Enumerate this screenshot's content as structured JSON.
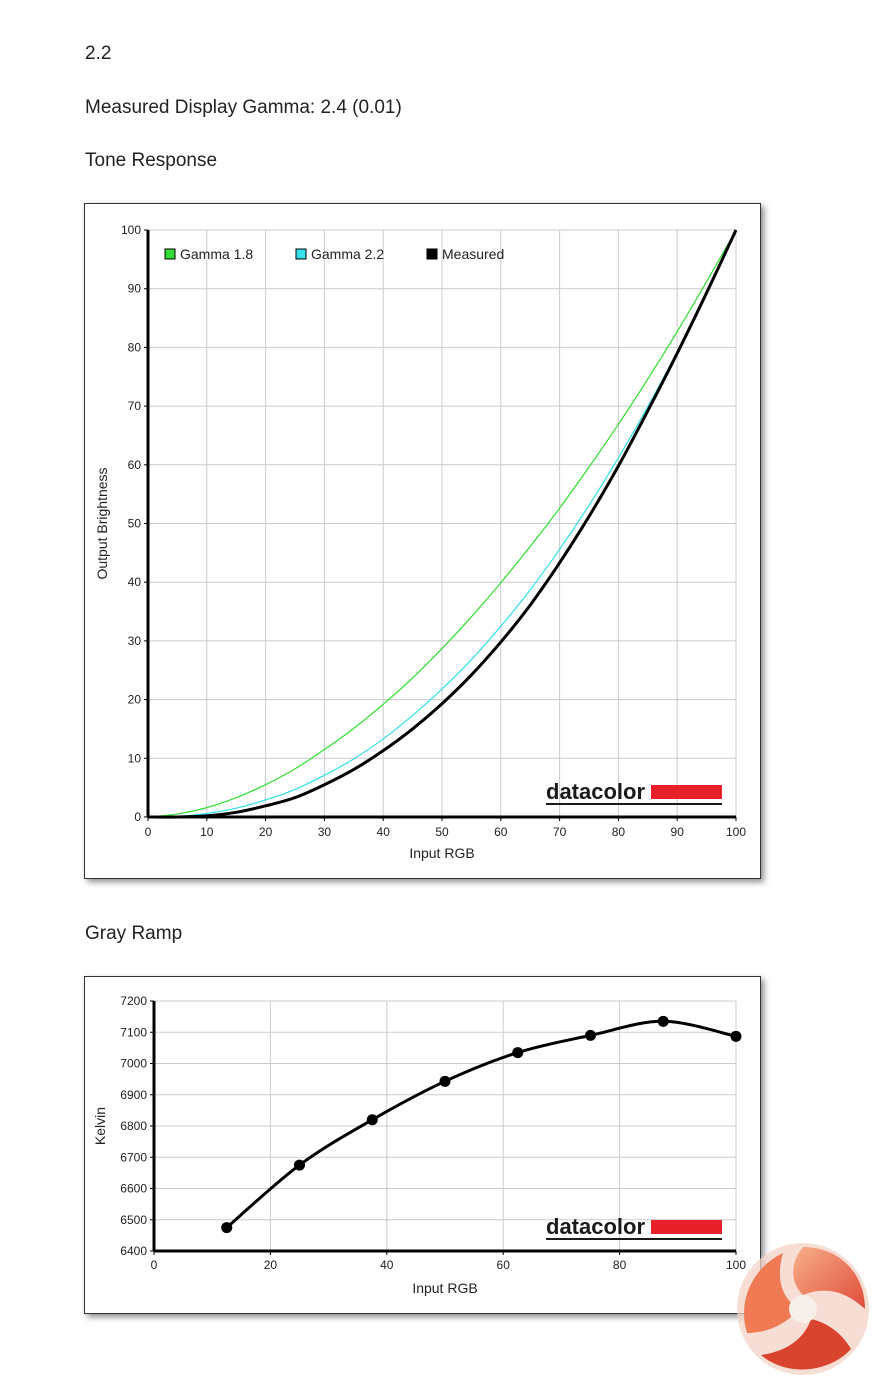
{
  "header": {
    "value_line": "2.2",
    "measured_line": "Measured Display Gamma: 2.4 (0.01)",
    "tone_title": "Tone Response",
    "gray_title": "Gray Ramp"
  },
  "brand": {
    "logo_text": "datacolor",
    "logo_bar_color": "#e8202a",
    "overlay_logo": "kitguru-logo-icon"
  },
  "chart_data": [
    {
      "type": "line",
      "xlabel": "Input RGB",
      "ylabel": "Output Brightness",
      "xlim": [
        0,
        100
      ],
      "ylim": [
        0,
        100
      ],
      "xticks": [
        0,
        10,
        20,
        30,
        40,
        50,
        60,
        70,
        80,
        90,
        100
      ],
      "yticks": [
        0,
        10,
        20,
        30,
        40,
        50,
        60,
        70,
        80,
        90,
        100
      ],
      "grid": true,
      "legend_position": "top-left",
      "x": [
        0,
        5,
        10,
        15,
        20,
        25,
        30,
        35,
        40,
        45,
        50,
        55,
        60,
        65,
        70,
        75,
        80,
        85,
        90,
        95,
        100
      ],
      "series": [
        {
          "name": "Gamma 1.8",
          "color": "#33dd33",
          "width": 1.2,
          "values": [
            0,
            0.5,
            1.6,
            3.3,
            5.5,
            8.2,
            11.5,
            15.1,
            19.2,
            23.7,
            28.7,
            34.1,
            39.9,
            46.1,
            52.6,
            59.6,
            66.9,
            74.6,
            82.7,
            91.2,
            100
          ]
        },
        {
          "name": "Gamma 2.2",
          "color": "#33e0e8",
          "width": 1.2,
          "values": [
            0,
            0.1,
            0.6,
            1.5,
            2.9,
            4.7,
            7.1,
            9.9,
            13.3,
            17.3,
            21.8,
            26.8,
            32.5,
            38.7,
            45.6,
            53.1,
            61.2,
            69.9,
            79.3,
            89.3,
            100
          ]
        },
        {
          "name": "Measured",
          "color": "#000000",
          "width": 3,
          "values": [
            0,
            0,
            0.2,
            0.8,
            1.9,
            3.3,
            5.5,
            8.1,
            11.3,
            15.0,
            19.3,
            24.2,
            29.8,
            36.1,
            43.3,
            51.2,
            59.8,
            69.2,
            79.0,
            89.3,
            100
          ]
        }
      ]
    },
    {
      "type": "line",
      "xlabel": "Input RGB",
      "ylabel": "Kelvin",
      "xlim": [
        0,
        100
      ],
      "ylim": [
        6400,
        7200
      ],
      "xticks": [
        0,
        20,
        40,
        60,
        80,
        100
      ],
      "yticks": [
        6400,
        6500,
        6600,
        6700,
        6800,
        6900,
        7000,
        7100,
        7200
      ],
      "grid": true,
      "series": [
        {
          "color": "#000000",
          "x": [
            12.5,
            25,
            37.5,
            50,
            62.5,
            75,
            87.5,
            100
          ],
          "values": [
            6475,
            6675,
            6820,
            6943,
            7035,
            7090,
            7135,
            7087
          ]
        }
      ]
    }
  ]
}
